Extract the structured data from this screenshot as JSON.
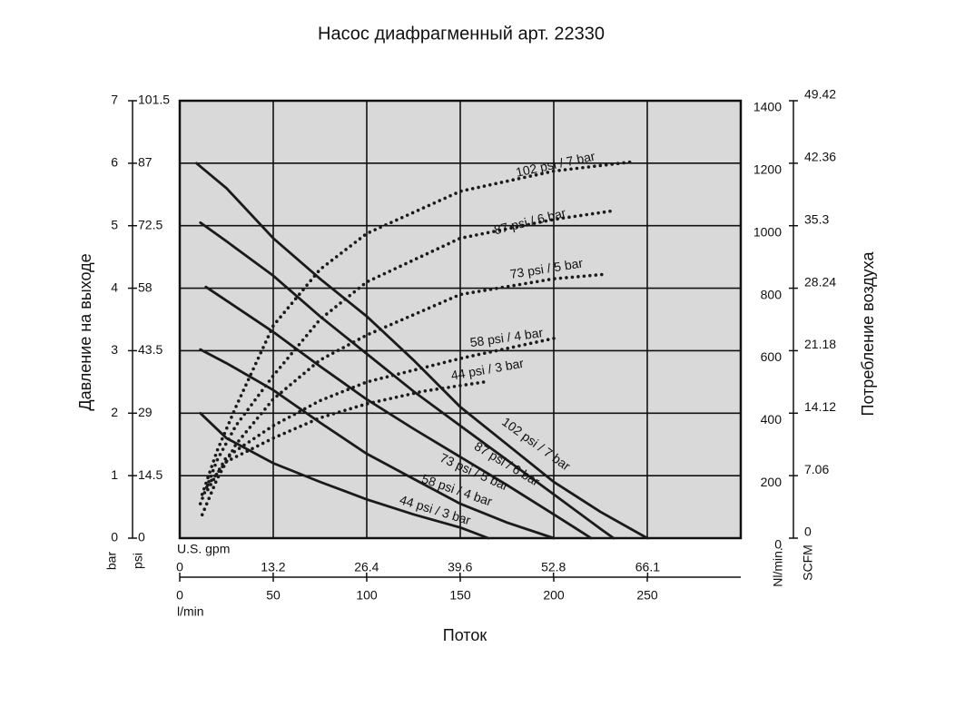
{
  "chart_data": {
    "type": "line",
    "title": "Насос диафрагменный арт. 22330",
    "x_label": "Поток",
    "y_label": "Давление на выходе",
    "y2_label": "Потребление воздуха",
    "x_unit": "l/min",
    "xlim": [
      0,
      300
    ],
    "xticks": [
      0,
      50,
      100,
      150,
      200,
      250
    ],
    "x_alt": {
      "unit": "U.S. gpm",
      "lim": [
        0,
        79.26
      ],
      "ticks": [
        0,
        13.2,
        26.4,
        39.6,
        52.8,
        66.1
      ]
    },
    "y_unit": "bar",
    "ylim": [
      0,
      7
    ],
    "yticks": [
      0,
      1,
      2,
      3,
      4,
      5,
      6,
      7
    ],
    "y_alt": {
      "unit": "psi",
      "lim": [
        0,
        101.5
      ],
      "ticks": [
        0,
        14.5,
        29,
        43.5,
        58,
        72.5,
        87,
        101.5
      ]
    },
    "y2_unit": "Nl/min.",
    "y2lim": [
      0,
      1400
    ],
    "y2ticks": [
      0,
      200,
      400,
      600,
      800,
      1000,
      1200,
      1400
    ],
    "y2_alt": {
      "unit": "SCFM",
      "lim": [
        0,
        49.42
      ],
      "ticks": [
        0,
        7.06,
        14.12,
        21.18,
        28.24,
        35.3,
        42.36,
        49.42
      ]
    },
    "grid": true,
    "series": [
      {
        "name": "102 psi / 7 bar",
        "color": "#1a1a1a",
        "style": "solid",
        "x": [
          9,
          25,
          50,
          75,
          100,
          125,
          150,
          175,
          200,
          225,
          250
        ],
        "values": [
          6.0,
          5.6,
          4.8,
          4.15,
          3.55,
          2.85,
          2.1,
          1.5,
          0.9,
          0.42,
          0
        ]
      },
      {
        "name": "87 psi / 6 bar",
        "color": "#1a1a1a",
        "style": "solid",
        "x": [
          11,
          25,
          50,
          75,
          100,
          125,
          150,
          175,
          200,
          225,
          232
        ],
        "values": [
          5.05,
          4.75,
          4.2,
          3.55,
          2.95,
          2.35,
          1.8,
          1.25,
          0.7,
          0.15,
          0
        ]
      },
      {
        "name": "73 psi / 5 bar",
        "color": "#1a1a1a",
        "style": "solid",
        "x": [
          14,
          25,
          50,
          75,
          100,
          125,
          150,
          175,
          200,
          220
        ],
        "values": [
          4.02,
          3.8,
          3.3,
          2.75,
          2.22,
          1.75,
          1.3,
          0.85,
          0.38,
          0
        ]
      },
      {
        "name": "58 psi / 4 bar",
        "color": "#1a1a1a",
        "style": "solid",
        "x": [
          11,
          25,
          50,
          75,
          100,
          125,
          150,
          175,
          200
        ],
        "values": [
          3.02,
          2.8,
          2.37,
          1.85,
          1.35,
          0.95,
          0.55,
          0.25,
          0
        ]
      },
      {
        "name": "44 psi / 3 bar",
        "color": "#1a1a1a",
        "style": "solid",
        "x": [
          11,
          25,
          50,
          75,
          100,
          125,
          150,
          165
        ],
        "values": [
          2.0,
          1.6,
          1.2,
          0.9,
          0.62,
          0.38,
          0.17,
          0
        ]
      },
      {
        "name": "102 psi / 7 bar",
        "color": "#1a1a1a",
        "style": "dotted",
        "axis": "y2",
        "x": [
          12,
          20,
          30,
          50,
          75,
          100,
          150,
          200,
          243
        ],
        "values": [
          140,
          280,
          420,
          680,
          860,
          975,
          1110,
          1175,
          1205
        ]
      },
      {
        "name": "87 psi / 6 bar",
        "color": "#1a1a1a",
        "style": "dotted",
        "axis": "y2",
        "x": [
          11,
          20,
          30,
          50,
          75,
          100,
          150,
          200,
          232
        ],
        "values": [
          110,
          250,
          360,
          520,
          700,
          820,
          960,
          1020,
          1048
        ]
      },
      {
        "name": "73 psi / 5 bar",
        "color": "#1a1a1a",
        "style": "dotted",
        "axis": "y2",
        "x": [
          12,
          20,
          30,
          50,
          75,
          100,
          150,
          200,
          228
        ],
        "values": [
          75,
          190,
          300,
          445,
          570,
          650,
          780,
          830,
          845
        ]
      },
      {
        "name": "58 psi / 4 bar",
        "color": "#1a1a1a",
        "style": "dotted",
        "axis": "y2",
        "x": [
          15,
          25,
          50,
          75,
          100,
          150,
          202
        ],
        "values": [
          155,
          260,
          360,
          440,
          500,
          575,
          642
        ]
      },
      {
        "name": "44 psi / 3 bar",
        "color": "#1a1a1a",
        "style": "dotted",
        "axis": "y2",
        "x": [
          15,
          25,
          50,
          75,
          100,
          130,
          165
        ],
        "values": [
          170,
          245,
          320,
          385,
          430,
          470,
          502
        ]
      }
    ]
  }
}
